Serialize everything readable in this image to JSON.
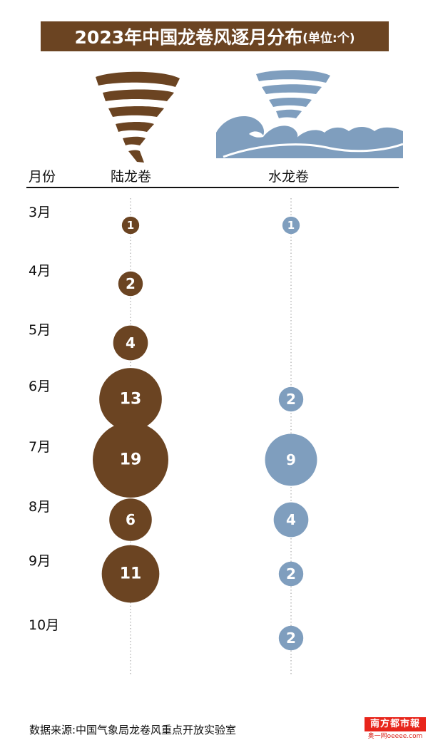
{
  "title": {
    "main": "2023年中国龙卷风逐月分布",
    "unit": "(单位:个)"
  },
  "headers": {
    "month": "月份",
    "land": "陆龙卷",
    "water": "水龙卷"
  },
  "icons": {
    "land": "land-tornado-icon",
    "water": "waterspout-wave-icon"
  },
  "colors": {
    "land": "#6b4422",
    "water": "#7f9ebe",
    "title_bg": "#6b4422",
    "logo_red": "#e8251b"
  },
  "chart_data": {
    "type": "scatter",
    "title": "2023年中国龙卷风逐月分布",
    "unit": "单位:个",
    "categories": [
      "3月",
      "4月",
      "5月",
      "6月",
      "7月",
      "8月",
      "9月",
      "10月"
    ],
    "series": [
      {
        "name": "陆龙卷",
        "values": [
          1,
          2,
          4,
          13,
          19,
          6,
          11,
          null
        ]
      },
      {
        "name": "水龙卷",
        "values": [
          1,
          null,
          null,
          2,
          9,
          4,
          2,
          2
        ]
      }
    ]
  },
  "source": "数据来源:中国气象局龙卷风重点开放实验室",
  "logo": {
    "top": "南方都市報",
    "bottom": "奥一网oeeee.com"
  }
}
